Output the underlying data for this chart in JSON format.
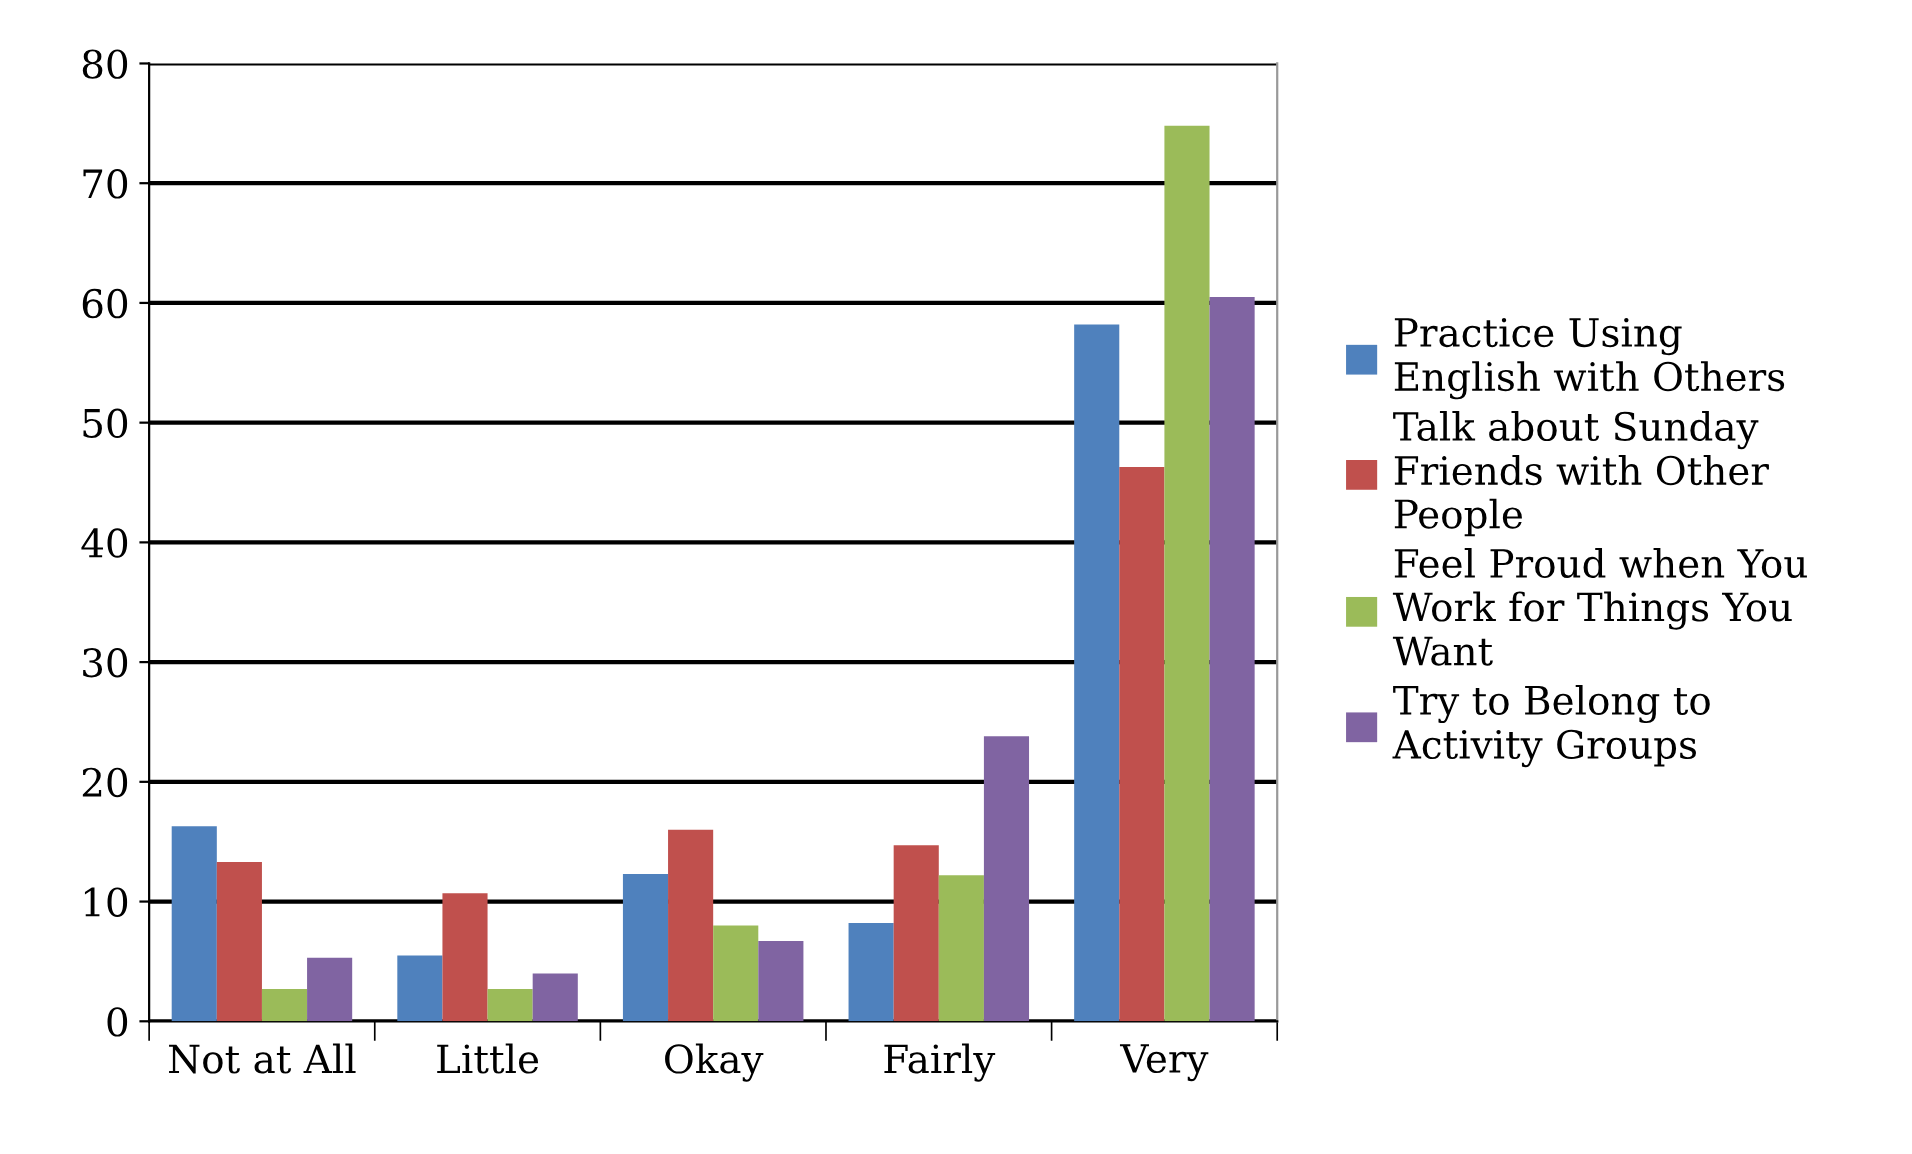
{
  "chart_data": {
    "type": "bar",
    "categories": [
      "Not at All",
      "Little",
      "Okay",
      "Fairly",
      "Very"
    ],
    "series": [
      {
        "name": "Practice Using English with Others",
        "color": "#4f81bd",
        "values": [
          16.3,
          5.5,
          12.3,
          8.2,
          58.2
        ]
      },
      {
        "name": "Talk about Sunday Friends with Other People",
        "color": "#c0504d",
        "values": [
          13.3,
          10.7,
          16.0,
          14.7,
          46.3
        ]
      },
      {
        "name": "Feel Proud when You Work for Things You Want",
        "color": "#9bbb59",
        "values": [
          2.7,
          2.7,
          8.0,
          12.2,
          74.8
        ]
      },
      {
        "name": "Try to Belong to Activity Groups",
        "color": "#8064a2",
        "values": [
          5.3,
          4.0,
          6.7,
          23.8,
          60.5
        ]
      }
    ],
    "ylim": [
      0,
      80
    ],
    "yticks": [
      0,
      10,
      20,
      30,
      40,
      50,
      60,
      70,
      80
    ],
    "grid": "y",
    "legend": "right"
  }
}
